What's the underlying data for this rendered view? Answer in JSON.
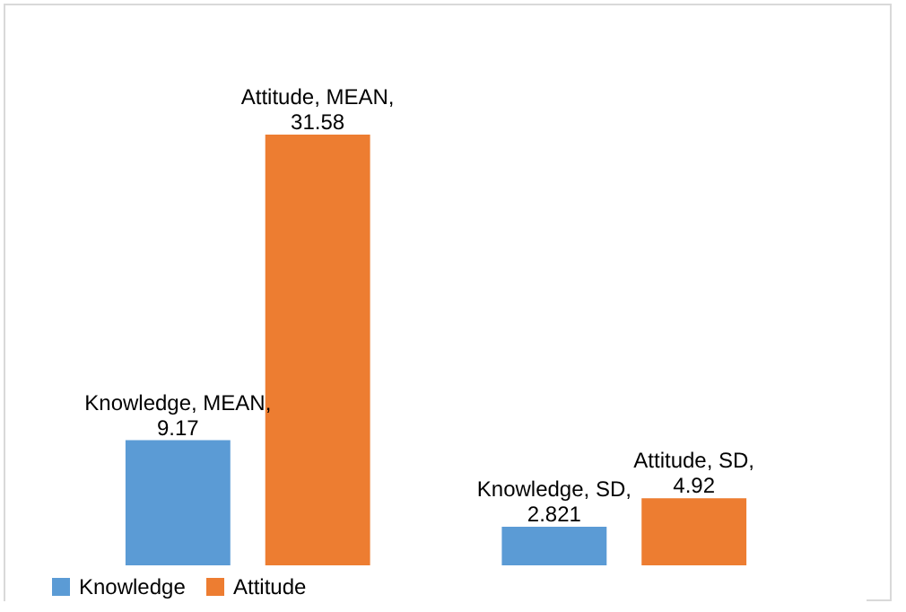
{
  "chart_data": {
    "type": "bar",
    "categories": [
      null,
      null
    ],
    "legend": "bottom",
    "series": [
      {
        "name": "Knowledge",
        "color": "#5b9bd5",
        "values": [
          9.17,
          2.821
        ],
        "value_labels": [
          "Knowledge, MEAN, 9.17",
          "Knowledge, SD, 2.821"
        ]
      },
      {
        "name": "Attitude",
        "color": "#ed7d31",
        "values": [
          31.58,
          4.92
        ],
        "value_labels": [
          "Attitude, MEAN, 31.58",
          "Attitude, SD, 4.92"
        ]
      }
    ]
  }
}
